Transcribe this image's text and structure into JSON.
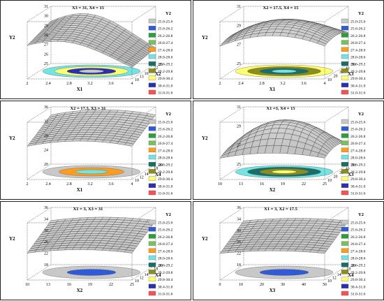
{
  "legend": {
    "title": "Y2",
    "colors": [
      "#c8c8c8",
      "#2f5ad8",
      "#2e9e3b",
      "#79c25a",
      "#ff9c1c",
      "#73e3e3",
      "#1a6e6a",
      "#8b8f1a",
      "#ffff70",
      "#2b2fb5",
      "#ff5050"
    ],
    "ranges": [
      "25.0-25.6",
      "25.6-26.2",
      "26.2-26.8",
      "26.8-27.4",
      "27.4-28.0",
      "28.0-28.6",
      "28.6-29.2",
      "29.2-29.8",
      "29.8-30.4",
      "30.4-31.0",
      "31.0-31.6"
    ]
  },
  "chart_data": [
    {
      "type": "surface",
      "title": "X3 = 31, X4 = 15",
      "xlabel": "X1",
      "ylabel": "X2",
      "zlabel": "Y2",
      "x_ticks": [
        "2",
        "2.4",
        "2.8",
        "3.2",
        "3.6",
        "4"
      ],
      "y_ticks": [
        "10",
        "13",
        "16",
        "19",
        "22",
        "25"
      ],
      "z_ticks": [
        "25",
        "26",
        "27",
        "28",
        "29",
        "30",
        "31"
      ],
      "zlim": [
        25,
        31
      ],
      "floor_colors": [
        "#73e3e3",
        "#ffff70",
        "#2b2fb5",
        "#c8c8c8"
      ]
    },
    {
      "type": "surface",
      "title": "X2 = 17.5, X4 = 15",
      "xlabel": "X1",
      "ylabel": "X3",
      "zlabel": "Y2",
      "x_ticks": [
        "2",
        "2.4",
        "2.8",
        "3.2",
        "3.6",
        "4"
      ],
      "y_ticks": [
        "10",
        "20",
        "30",
        "40",
        "50"
      ],
      "z_ticks": [
        "25",
        "27",
        "29",
        "31"
      ],
      "zlim": [
        25,
        31
      ],
      "floor_colors": [
        "#ffff70",
        "#8b8f1a",
        "#1a6e6a",
        "#73e3e3"
      ]
    },
    {
      "type": "surface",
      "title": "X2 = 17.5, X3 = 31",
      "xlabel": "X1",
      "ylabel": "X4",
      "zlabel": "Y2",
      "x_ticks": [
        "2",
        "2.4",
        "2.8",
        "3.2",
        "3.6",
        "4"
      ],
      "y_ticks": [
        "10",
        "12",
        "14",
        "16",
        "18",
        "20"
      ],
      "z_ticks": [
        "20",
        "24",
        "28",
        "32",
        "36"
      ],
      "zlim": [
        20,
        36
      ],
      "floor_colors": [
        "#c8c8c8",
        "#ff9c1c",
        "#73e3e3"
      ]
    },
    {
      "type": "surface",
      "title": "X1 =3, X4 = 15",
      "xlabel": "X2",
      "ylabel": "X3",
      "zlabel": "Y2",
      "x_ticks": [
        "10",
        "13",
        "16",
        "19",
        "22",
        "25"
      ],
      "y_ticks": [
        "10",
        "20",
        "30",
        "40",
        "50"
      ],
      "z_ticks": [
        "25",
        "27",
        "29",
        "31"
      ],
      "zlim": [
        25,
        31
      ],
      "floor_colors": [
        "#73e3e3",
        "#1a6e6a",
        "#8b8f1a",
        "#ffff70"
      ]
    },
    {
      "type": "surface",
      "title": "X1 = 3, X3 = 31",
      "xlabel": "X2",
      "ylabel": "X4",
      "zlabel": "Y2",
      "x_ticks": [
        "10",
        "13",
        "16",
        "19",
        "22",
        "25"
      ],
      "y_ticks": [
        "10",
        "12",
        "14",
        "16",
        "18",
        "20"
      ],
      "z_ticks": [
        "18",
        "22",
        "26",
        "30",
        "34",
        "36"
      ],
      "zlim": [
        18,
        36
      ],
      "floor_colors": [
        "#c8c8c8",
        "#2f5ad8"
      ]
    },
    {
      "type": "surface",
      "title": "X1 = 3, X2 = 17.5",
      "xlabel": "X3",
      "ylabel": "X4",
      "zlabel": "Y2",
      "x_ticks": [
        "0",
        "10",
        "20",
        "30",
        "40",
        "50"
      ],
      "y_ticks": [
        "10",
        "12",
        "14",
        "16",
        "18",
        "20"
      ],
      "z_ticks": [
        "18",
        "22",
        "26",
        "30",
        "34",
        "36"
      ],
      "zlim": [
        18,
        36
      ],
      "floor_colors": [
        "#c8c8c8",
        "#2f5ad8"
      ]
    }
  ]
}
